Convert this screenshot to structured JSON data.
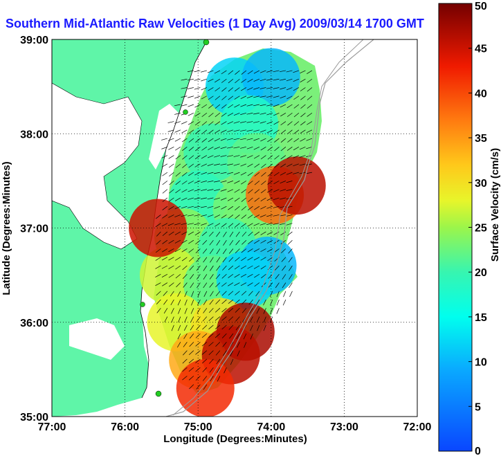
{
  "chart_data": {
    "type": "heatmap",
    "title": "Southern Mid-Atlantic Raw Velocities (1 Day Avg) 2009/03/14 1700 GMT",
    "xlabel": "Longitude (Degrees:Minutes)",
    "ylabel": "Latitude (Degrees:Minutes)",
    "xlim": [
      -77,
      -72
    ],
    "ylim": [
      35,
      39
    ],
    "x_ticks": [
      -77,
      -76,
      -75,
      -74,
      -73,
      -72
    ],
    "x_tick_labels": [
      "77:00",
      "76:00",
      "75:00",
      "74:00",
      "73:00",
      "72:00"
    ],
    "y_ticks": [
      35,
      36,
      37,
      38,
      39
    ],
    "y_tick_labels": [
      "35:00",
      "36:00",
      "37:00",
      "38:00",
      "39:00"
    ],
    "grid": true,
    "colorbar": {
      "label": "Surface Velocity (cm/s)",
      "range": [
        0,
        50
      ],
      "ticks": [
        0,
        5,
        10,
        15,
        20,
        25,
        30,
        35,
        40,
        45,
        50
      ],
      "colormap": "jet"
    },
    "colors": {
      "land": "#5ff5a8",
      "title": "#1a1aff",
      "coast_line": "#000000",
      "bathymetry": "#9a9a9a",
      "station": "#22cc22"
    },
    "velocity_field": [
      {
        "lon": -74.5,
        "lat": 38.5,
        "speed": 12
      },
      {
        "lon": -74.0,
        "lat": 38.6,
        "speed": 10
      },
      {
        "lon": -74.3,
        "lat": 38.1,
        "speed": 18
      },
      {
        "lon": -74.8,
        "lat": 37.8,
        "speed": 20
      },
      {
        "lon": -74.2,
        "lat": 37.7,
        "speed": 22
      },
      {
        "lon": -75.0,
        "lat": 37.3,
        "speed": 19
      },
      {
        "lon": -74.4,
        "lat": 37.2,
        "speed": 23
      },
      {
        "lon": -73.95,
        "lat": 37.35,
        "speed": 38
      },
      {
        "lon": -75.2,
        "lat": 36.9,
        "speed": 24
      },
      {
        "lon": -74.6,
        "lat": 36.8,
        "speed": 20
      },
      {
        "lon": -74.05,
        "lat": 36.6,
        "speed": 10
      },
      {
        "lon": -75.4,
        "lat": 36.5,
        "speed": 27
      },
      {
        "lon": -74.8,
        "lat": 36.4,
        "speed": 22
      },
      {
        "lon": -74.35,
        "lat": 36.45,
        "speed": 12
      },
      {
        "lon": -75.3,
        "lat": 36.0,
        "speed": 28
      },
      {
        "lon": -74.7,
        "lat": 35.95,
        "speed": 30
      },
      {
        "lon": -74.35,
        "lat": 35.9,
        "speed": 47
      },
      {
        "lon": -75.0,
        "lat": 35.6,
        "speed": 34
      },
      {
        "lon": -74.55,
        "lat": 35.65,
        "speed": 46
      },
      {
        "lon": -74.9,
        "lat": 35.3,
        "speed": 42
      },
      {
        "lon": -75.55,
        "lat": 37.0,
        "speed": 45
      },
      {
        "lon": -73.65,
        "lat": 37.45,
        "speed": 46
      }
    ]
  }
}
